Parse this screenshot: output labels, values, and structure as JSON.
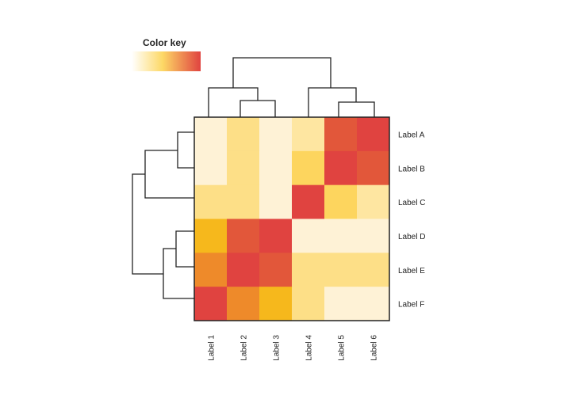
{
  "chart_data": {
    "type": "heatmap",
    "title": "",
    "legend": {
      "title": "Color key",
      "placement": "top-left",
      "colors": [
        "#FFFFFF",
        "#FDD865",
        "#E04340"
      ]
    },
    "rows": [
      "Label A",
      "Label B",
      "Label C",
      "Label D",
      "Label E",
      "Label F"
    ],
    "columns": [
      "Label 1",
      "Label 2",
      "Label 3",
      "Label 4",
      "Label 5",
      "Label 6"
    ],
    "values": [
      [
        0.05,
        0.3,
        0.05,
        0.2,
        0.85,
        1.0
      ],
      [
        0.05,
        0.3,
        0.05,
        0.4,
        1.0,
        0.85
      ],
      [
        0.3,
        0.3,
        0.05,
        1.0,
        0.4,
        0.2
      ],
      [
        0.55,
        0.85,
        1.0,
        0.05,
        0.05,
        0.05
      ],
      [
        0.7,
        1.0,
        0.85,
        0.3,
        0.3,
        0.3
      ],
      [
        1.0,
        0.7,
        0.55,
        0.3,
        0.05,
        0.05
      ]
    ],
    "row_dendrogram": "((((A,B),C),((D,E),F)))",
    "column_dendrogram": "((1,(2,3)),(4,(5,6)))"
  }
}
